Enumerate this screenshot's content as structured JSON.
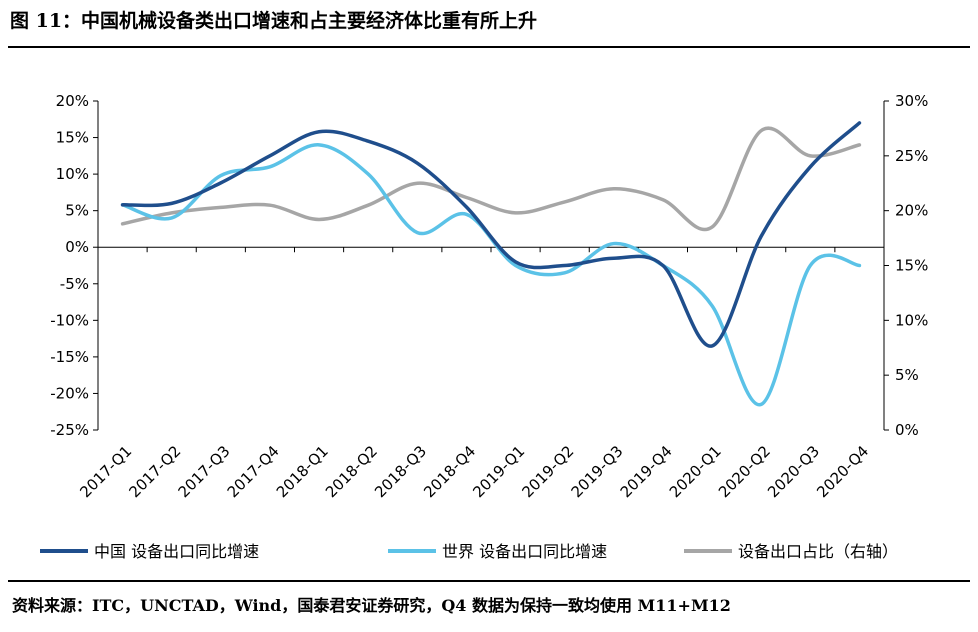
{
  "header": {
    "title": "图 11：中国机械设备类出口增速和占主要经济体比重有所上升"
  },
  "footer": {
    "source": "资料来源：ITC，UNCTAD，Wind，国泰君安证券研究，Q4 数据为保持一致均使用 M11+M12"
  },
  "chart_data": {
    "type": "line",
    "categories": [
      "2017-Q1",
      "2017-Q2",
      "2017-Q3",
      "2017-Q4",
      "2018-Q1",
      "2018-Q2",
      "2018-Q3",
      "2018-Q4",
      "2019-Q1",
      "2019-Q2",
      "2019-Q3",
      "2019-Q4",
      "2020-Q1",
      "2020-Q2",
      "2020-Q3",
      "2020-Q4"
    ],
    "left_axis": {
      "min": -25,
      "max": 20,
      "step": 5,
      "unit": "%",
      "ticks": [
        "20%",
        "15%",
        "10%",
        "5%",
        "0%",
        "-5%",
        "-10%",
        "-15%",
        "-20%",
        "-25%"
      ]
    },
    "right_axis": {
      "min": 0,
      "max": 30,
      "step": 5,
      "unit": "%",
      "ticks": [
        "30%",
        "25%",
        "20%",
        "15%",
        "10%",
        "5%",
        "0%"
      ]
    },
    "series": [
      {
        "name": "中国 设备出口同比增速",
        "axis": "left",
        "color": "#1f4e8c",
        "values": [
          5.8,
          6.0,
          8.8,
          12.5,
          15.8,
          14.5,
          11.5,
          5.5,
          -2.0,
          -2.5,
          -1.5,
          -2.5,
          -13.5,
          1.5,
          11.0,
          17.0
        ]
      },
      {
        "name": "世界 设备出口同比增速",
        "axis": "left",
        "color": "#5bc2e7",
        "values": [
          5.8,
          4.0,
          9.8,
          11.0,
          14.0,
          10.0,
          2.0,
          4.5,
          -2.5,
          -3.5,
          0.5,
          -2.5,
          -8.0,
          -21.5,
          -2.5,
          -2.5
        ]
      },
      {
        "name": "设备出口占比（右轴）",
        "axis": "right",
        "color": "#a6a6a6",
        "values": [
          18.8,
          19.8,
          20.3,
          20.5,
          19.2,
          20.5,
          22.5,
          21.2,
          19.8,
          20.8,
          22.0,
          21.0,
          18.5,
          27.3,
          25.0,
          26.0
        ]
      }
    ],
    "grid": false,
    "legend_position": "bottom"
  }
}
